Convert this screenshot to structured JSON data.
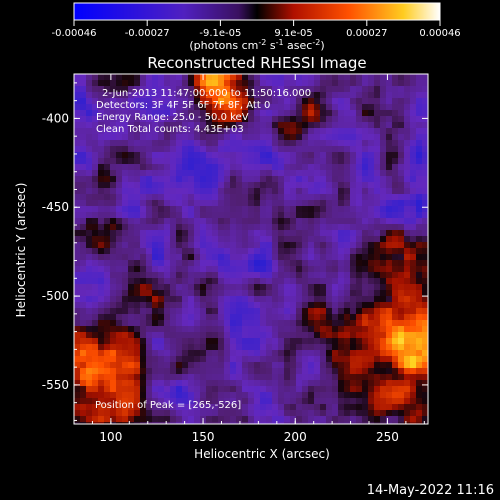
{
  "chart_data": {
    "type": "heatmap",
    "title": "Reconstructed RHESSI Image",
    "xlabel": "Heliocentric X (arcsec)",
    "ylabel": "Heliocentric Y (arcsec)",
    "xlim": [
      80,
      272
    ],
    "ylim": [
      -572,
      -375
    ],
    "x_ticks": [
      100,
      150,
      200,
      250
    ],
    "y_ticks": [
      -400,
      -450,
      -500,
      -550
    ],
    "colorbar": {
      "ticks": [
        "-0.00046",
        "-0.00027",
        "-9.1e-05",
        "9.1e-05",
        "0.00027",
        "0.00046"
      ],
      "unit_line": "(photons cm",
      "unit_sup1": "-2",
      "unit_mid": " s",
      "unit_sup2": "-1",
      "unit_end": " asec",
      "unit_sup3": "-2",
      "unit_close": ")",
      "range": [
        -0.00046,
        0.00046
      ]
    },
    "annotations": [
      "2-Jun-2013 11:47:00.000 to 11:50:16.000",
      "Detectors: 3F 4F 5F 6F 7F 8F, Att 0",
      "Energy Range: 25.0 - 50.0 keV",
      "Clean    Total counts: 4.43E+03"
    ],
    "peak_label": "Position of Peak = [265,-526]",
    "peak": [
      265,
      -526
    ],
    "timestamp": "14-May-2022 11:16",
    "colors": {
      "background": "#000000",
      "axes": "#ffffff",
      "text": "#ffffff",
      "colormap": [
        "#0000ff",
        "#2020c8",
        "#6a2ab8",
        "#5a1e6a",
        "#1a0408",
        "#a01000",
        "#ff5000",
        "#ffd21e",
        "#ffffe6"
      ]
    }
  }
}
